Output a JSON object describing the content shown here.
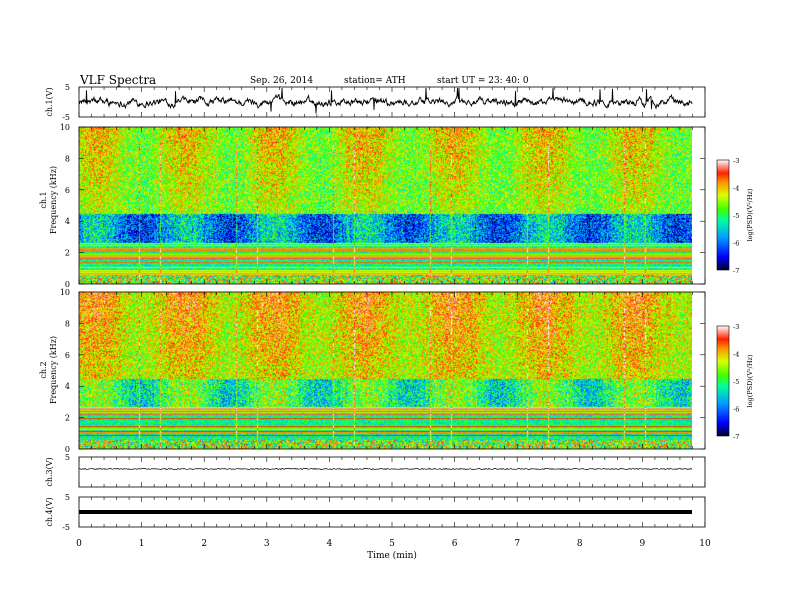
{
  "header": {
    "title": "VLF  Spectra",
    "date": "Sep. 26, 2014",
    "station": "station= ATH",
    "start": "start  UT  =   23: 40: 0"
  },
  "chart_data": [
    {
      "type": "line",
      "panel": "ch1",
      "ylabel": "ch.1(V)",
      "ylim": [
        -5,
        5
      ],
      "yticks": [
        "5",
        "-5"
      ],
      "x_range": [
        0,
        9.8
      ],
      "description_values": {
        "baseline": 0,
        "spike_max": 4.5,
        "spike_min": -3
      },
      "color": "#000000"
    },
    {
      "type": "heatmap",
      "panel": "ch1-spectrogram",
      "ylabel": "ch.1\nFrequency (kHz)",
      "ylim": [
        0,
        10
      ],
      "yticks": [
        "0",
        "2",
        "4",
        "6",
        "8",
        "10"
      ],
      "colorbar": {
        "label": "log(PSD)(V²/Hz)",
        "range": [
          -7,
          -3
        ],
        "ticks": [
          "-3",
          "-4",
          "-5",
          "-6",
          "-7"
        ]
      }
    },
    {
      "type": "heatmap",
      "panel": "ch2-spectrogram",
      "ylabel": "ch.2\nFrequency (kHz)",
      "ylim": [
        0,
        10
      ],
      "yticks": [
        "0",
        "2",
        "4",
        "6",
        "8",
        "10"
      ],
      "colorbar": {
        "label": "log(PSD)(V²/Hz)",
        "range": [
          -7,
          -3
        ],
        "ticks": [
          "-3",
          "-4",
          "-5",
          "-6",
          "-7"
        ]
      }
    },
    {
      "type": "line",
      "panel": "ch3",
      "ylabel": "ch.3(V)",
      "ylim": [
        -5,
        5
      ],
      "yticks": [
        "5"
      ],
      "x_range": [
        0,
        9.8
      ],
      "description_values": {
        "baseline": 0
      },
      "color": "#000000"
    },
    {
      "type": "line",
      "panel": "ch4",
      "ylabel": "ch.4(V)",
      "ylim": [
        -5,
        5
      ],
      "yticks": [
        "5",
        "-5"
      ],
      "x_range": [
        0,
        9.8
      ],
      "description_values": {
        "baseline": 0
      },
      "color": "#000000"
    }
  ],
  "xaxis": {
    "label": "Time  (min)",
    "ticks": [
      "0",
      "1",
      "2",
      "3",
      "4",
      "5",
      "6",
      "7",
      "8",
      "9",
      "10"
    ],
    "range": [
      0,
      10
    ]
  },
  "colors": {
    "cmap": [
      "#000030",
      "#0000ff",
      "#00a0ff",
      "#00ffa0",
      "#40ff00",
      "#d8ff00",
      "#ffd000",
      "#ff3000",
      "#ffffff"
    ]
  }
}
